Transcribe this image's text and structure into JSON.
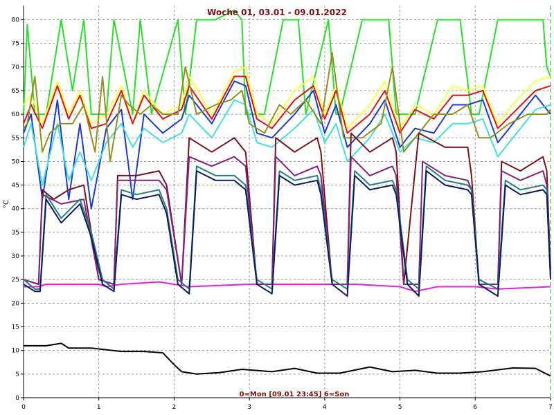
{
  "chart_data": {
    "type": "line",
    "title": "Woche 01, 03.01 - 09.01.2022",
    "footer": "0=Mon [09.01 23:45] 6=Son",
    "ylabel": "°C",
    "xlabel": "",
    "xlim": [
      0,
      7
    ],
    "ylim": [
      0,
      83
    ],
    "x_ticks": [
      "0",
      "1",
      "2",
      "3",
      "4",
      "5",
      "6",
      "7"
    ],
    "y_ticks": [
      "0",
      "5",
      "10",
      "15",
      "20",
      "25",
      "30",
      "35",
      "40",
      "45",
      "50",
      "55",
      "60",
      "65",
      "70",
      "75",
      "80"
    ],
    "grid": true,
    "series": [
      {
        "color": "#000000",
        "x": [
          0,
          0.3,
          0.5,
          0.6,
          0.9,
          1.3,
          1.6,
          1.85,
          2.0,
          2.1,
          2.3,
          2.6,
          2.9,
          3.3,
          3.6,
          3.9,
          4.2,
          4.6,
          4.9,
          5.2,
          5.5,
          5.8,
          6.1,
          6.5,
          6.8,
          7.0
        ],
        "y": [
          11,
          11,
          11.5,
          10.5,
          10.5,
          9.8,
          9.8,
          9.5,
          7,
          5.5,
          5,
          5.3,
          6,
          5.5,
          6.2,
          5.2,
          5.2,
          6.5,
          5.5,
          5.8,
          5.2,
          5.2,
          5.5,
          6.3,
          6.2,
          4.6
        ]
      },
      {
        "color": "#e020e0",
        "x": [
          0,
          0.2,
          0.3,
          1.0,
          1.1,
          1.3,
          1.8,
          2.0,
          2.2,
          3.0,
          4.0,
          4.4,
          5.0,
          5.2,
          5.5,
          6.0,
          6.3,
          7.0
        ],
        "y": [
          23.5,
          23.5,
          24,
          24,
          23.5,
          24,
          24.5,
          24,
          23.5,
          24,
          24,
          24,
          23.5,
          22.5,
          23.5,
          23.5,
          23,
          23.5
        ]
      },
      {
        "color": "#28e028",
        "x": [
          0,
          0.05,
          0.15,
          0.3,
          0.5,
          0.65,
          0.8,
          0.9,
          1.1,
          1.2,
          1.45,
          1.55,
          1.7,
          2.05,
          2.15,
          2.3,
          2.55,
          2.8,
          2.9,
          2.95,
          3.2,
          3.45,
          3.65,
          3.75,
          4.05,
          4.15,
          4.2,
          4.5,
          4.85,
          4.95,
          5.2,
          5.5,
          5.8,
          5.95,
          6.05,
          6.3,
          6.6,
          6.75,
          6.9,
          6.95,
          7.0
        ],
        "y": [
          60,
          79,
          60,
          60,
          80,
          65,
          80,
          60,
          60,
          80,
          60,
          80,
          60,
          80,
          60,
          80,
          80,
          82,
          80,
          60,
          60,
          80,
          80,
          60,
          80,
          60,
          60,
          80,
          80,
          60,
          60,
          80,
          80,
          60,
          60,
          80,
          80,
          80,
          80,
          70,
          68
        ]
      },
      {
        "color": "#ffff40",
        "x": [
          0,
          0.1,
          0.25,
          0.45,
          0.6,
          0.75,
          0.9,
          1.1,
          1.3,
          1.45,
          1.6,
          1.85,
          2.1,
          2.2,
          2.5,
          2.8,
          2.95,
          3.1,
          3.3,
          3.6,
          3.85,
          4.0,
          4.15,
          4.3,
          4.6,
          4.8,
          5.0,
          5.2,
          5.45,
          5.7,
          5.9,
          6.1,
          6.3,
          6.55,
          6.8,
          7.0
        ],
        "y": [
          62,
          64,
          58,
          67,
          60,
          65,
          58,
          60,
          66,
          58,
          65,
          60,
          62,
          68,
          60,
          69,
          70,
          60,
          58,
          65,
          68,
          60,
          66,
          57,
          62,
          67,
          57,
          62,
          60,
          66,
          65,
          66,
          58,
          63,
          67,
          68
        ]
      },
      {
        "color": "#e01010",
        "x": [
          0,
          0.1,
          0.25,
          0.45,
          0.6,
          0.75,
          0.9,
          1.1,
          1.3,
          1.45,
          1.6,
          1.85,
          2.1,
          2.2,
          2.5,
          2.8,
          2.95,
          3.1,
          3.3,
          3.6,
          3.85,
          4.0,
          4.15,
          4.3,
          4.6,
          4.8,
          5.0,
          5.2,
          5.45,
          5.7,
          5.9,
          6.1,
          6.3,
          6.55,
          6.8,
          7.0
        ],
        "y": [
          58,
          62,
          57,
          66,
          59,
          64,
          57,
          58,
          65,
          58,
          64,
          59,
          61,
          66,
          59,
          68,
          68,
          59,
          57,
          63,
          66,
          59,
          65,
          56,
          60,
          65,
          56,
          61,
          59,
          64,
          64,
          65,
          57,
          61,
          65,
          66
        ]
      },
      {
        "color": "#1a3ad0",
        "x": [
          0,
          0.1,
          0.25,
          0.45,
          0.6,
          0.75,
          0.9,
          1.1,
          1.3,
          1.45,
          1.6,
          1.85,
          2.1,
          2.2,
          2.5,
          2.8,
          2.95,
          3.1,
          3.3,
          3.6,
          3.85,
          4.0,
          4.15,
          4.3,
          4.6,
          4.8,
          5.0,
          5.2,
          5.45,
          5.7,
          5.9,
          6.1,
          6.3,
          6.55,
          6.8,
          7.0
        ],
        "y": [
          56,
          60,
          42,
          63,
          42,
          58,
          40,
          57,
          61,
          42,
          60,
          56,
          59,
          64,
          58,
          67,
          66,
          56,
          55,
          60,
          65,
          56,
          62,
          53,
          58,
          63,
          53,
          57,
          56,
          62,
          62,
          63,
          54,
          59,
          64,
          60
        ]
      },
      {
        "color": "#40e0e0",
        "x": [
          0,
          0.1,
          0.25,
          0.45,
          0.6,
          0.75,
          0.9,
          1.1,
          1.3,
          1.45,
          1.6,
          1.85,
          2.1,
          2.2,
          2.5,
          2.8,
          2.95,
          3.1,
          3.3,
          3.6,
          3.85,
          4.0,
          4.15,
          4.3,
          4.6,
          4.8,
          5.0,
          5.2,
          5.45,
          5.7,
          5.9,
          6.1,
          6.3,
          6.55,
          6.8,
          7.0
        ],
        "y": [
          53,
          58,
          45,
          58,
          46,
          52,
          46,
          54,
          58,
          53,
          57,
          54,
          56,
          60,
          55,
          63,
          62,
          54,
          53,
          57,
          61,
          54,
          58,
          50,
          55,
          60,
          52,
          55,
          54,
          58,
          58,
          59,
          51,
          56,
          61,
          62
        ]
      },
      {
        "color": "#909020",
        "x": [
          0,
          0.05,
          0.15,
          0.25,
          0.35,
          0.5,
          0.65,
          0.8,
          0.95,
          1.05,
          1.15,
          1.3,
          1.4,
          1.55,
          1.7,
          1.85,
          2.05,
          2.15,
          2.3,
          2.55,
          2.75,
          2.9,
          3.0,
          3.2,
          3.4,
          3.55,
          3.75,
          3.95,
          4.1,
          4.25,
          4.5,
          4.75,
          4.9,
          5.05,
          5.2,
          5.45,
          5.7,
          5.9,
          6.05,
          6.2,
          6.45,
          6.7,
          6.95,
          7.0
        ],
        "y": [
          57,
          58,
          68,
          52,
          56,
          58,
          58,
          62,
          52,
          68,
          50,
          64,
          62,
          60,
          62,
          60,
          60,
          70,
          60,
          62,
          63,
          65,
          58,
          56,
          62,
          60,
          63,
          58,
          73,
          55,
          55,
          58,
          70,
          52,
          55,
          60,
          60,
          62,
          55,
          55,
          58,
          60,
          60,
          61
        ]
      },
      {
        "color": "#7a1018",
        "x": [
          0,
          0.2,
          0.25,
          0.4,
          0.6,
          0.8,
          1.0,
          1.2,
          1.25,
          1.5,
          1.8,
          1.9,
          2.1,
          2.2,
          2.5,
          2.8,
          2.95,
          3.1,
          3.3,
          3.35,
          3.6,
          3.9,
          3.95,
          4.1,
          4.3,
          4.35,
          4.6,
          4.9,
          4.95,
          5.05,
          5.25,
          5.6,
          5.9,
          5.95,
          6.05,
          6.3,
          6.35,
          6.6,
          6.9,
          6.95,
          7.0
        ],
        "y": [
          25,
          24,
          44,
          42,
          44,
          45,
          25,
          24,
          47,
          47,
          48,
          45,
          24,
          55,
          52,
          55,
          52,
          24,
          24,
          55,
          52,
          55,
          52,
          24,
          24,
          56,
          52,
          55,
          52,
          24,
          56,
          53,
          53,
          47,
          24,
          24,
          50,
          48,
          51,
          48,
          27
        ]
      },
      {
        "color": "#802080",
        "x": [
          0,
          0.2,
          0.25,
          0.5,
          0.8,
          1.0,
          1.2,
          1.25,
          1.5,
          1.8,
          1.9,
          2.1,
          2.2,
          2.5,
          2.8,
          2.95,
          3.1,
          3.3,
          3.35,
          3.6,
          3.9,
          3.95,
          4.1,
          4.3,
          4.35,
          4.6,
          4.9,
          4.95,
          5.05,
          5.25,
          5.3,
          5.6,
          5.9,
          5.95,
          6.05,
          6.3,
          6.35,
          6.6,
          6.9,
          6.95,
          7.0
        ],
        "y": [
          25,
          24,
          43,
          41,
          42,
          25,
          24,
          46,
          46,
          46,
          44,
          24,
          51,
          49,
          51,
          49,
          24,
          24,
          51,
          47,
          49,
          47,
          24,
          24,
          51,
          47,
          49,
          47,
          24,
          24,
          50,
          47,
          46,
          44,
          24,
          24,
          48,
          46,
          48,
          45,
          27
        ]
      },
      {
        "color": "#208080",
        "x": [
          0,
          0.15,
          0.22,
          0.3,
          0.5,
          0.75,
          0.9,
          1.05,
          1.2,
          1.3,
          1.5,
          1.8,
          1.9,
          2.05,
          2.2,
          2.3,
          2.55,
          2.8,
          2.95,
          3.1,
          3.3,
          3.4,
          3.6,
          3.9,
          3.95,
          4.1,
          4.3,
          4.4,
          4.6,
          4.9,
          4.95,
          5.1,
          5.25,
          5.35,
          5.6,
          5.9,
          5.95,
          6.05,
          6.3,
          6.4,
          6.6,
          6.9,
          6.95,
          7.0
        ],
        "y": [
          25,
          23,
          23,
          43,
          38,
          42,
          35,
          25,
          23,
          44,
          43,
          44,
          40,
          25,
          23,
          49,
          47,
          47,
          45,
          25,
          23,
          48,
          46,
          47,
          44,
          25,
          23,
          48,
          45,
          46,
          44,
          25,
          23,
          49,
          46,
          45,
          44,
          25,
          23,
          46,
          44,
          45,
          44,
          26
        ]
      },
      {
        "color": "#101860",
        "x": [
          0,
          0.15,
          0.22,
          0.3,
          0.5,
          0.75,
          0.9,
          1.05,
          1.2,
          1.3,
          1.5,
          1.8,
          1.9,
          2.05,
          2.2,
          2.3,
          2.55,
          2.8,
          2.95,
          3.1,
          3.3,
          3.4,
          3.6,
          3.9,
          3.95,
          4.1,
          4.3,
          4.4,
          4.6,
          4.9,
          4.95,
          5.1,
          5.25,
          5.35,
          5.6,
          5.9,
          5.95,
          6.05,
          6.3,
          6.4,
          6.6,
          6.9,
          6.95,
          7.0
        ],
        "y": [
          24,
          22.5,
          22.5,
          42,
          37,
          41,
          34,
          24,
          22.5,
          43,
          42,
          43,
          39,
          24,
          22,
          48,
          46,
          46,
          44,
          24,
          22,
          47,
          45,
          46,
          43,
          24,
          21.5,
          47,
          44,
          45,
          43,
          24,
          21.5,
          48,
          45,
          44,
          43,
          24,
          21.5,
          45,
          43,
          44,
          43,
          25
        ]
      }
    ]
  }
}
